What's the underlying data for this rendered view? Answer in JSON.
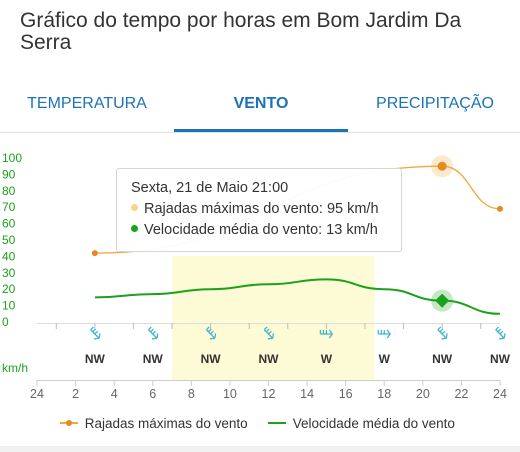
{
  "page": {
    "title": "Gráfico do tempo por horas em Bom Jardim Da Serra"
  },
  "tabs": [
    {
      "label": "TEMPERATURA",
      "active": false
    },
    {
      "label": "VENTO",
      "active": true
    },
    {
      "label": "PRECIPITAÇÃO",
      "active": false
    }
  ],
  "colors": {
    "accent": "#1a73b5",
    "gust": "#f2a93b",
    "gust_dot": "#e58a1f",
    "avg": "#1ba21b",
    "wind_arrow": "#42b7cc",
    "night_band": "#fdfbd6"
  },
  "tooltip": {
    "header": "Sexta, 21 de Maio 21:00",
    "rows": [
      {
        "label": "Rajadas máximas do vento: 95 km/h",
        "color": "#f8d48a"
      },
      {
        "label": "Velocidade média do vento: 13 km/h",
        "color": "#1ba21b"
      }
    ]
  },
  "legend": {
    "gust": "Rajadas máximas do vento",
    "avg": "Velocidade média do vento"
  },
  "chart_data": {
    "type": "line",
    "unit": "km/h",
    "y_ticks": [
      "100",
      "90",
      "80",
      "70",
      "60",
      "50",
      "40",
      "30",
      "20",
      "10",
      "0"
    ],
    "ylim": [
      0,
      100
    ],
    "x_ticks": [
      "24",
      "2",
      "4",
      "6",
      "8",
      "10",
      "12",
      "14",
      "16",
      "18",
      "20",
      "22",
      "24"
    ],
    "xlim": [
      0,
      24
    ],
    "highlight_band": [
      7,
      17.5
    ],
    "series": [
      {
        "name": "Rajadas máximas do vento",
        "x": [
          3,
          21,
          24
        ],
        "y": [
          42,
          95,
          69
        ]
      },
      {
        "name": "Velocidade média do vento",
        "x": [
          3,
          6,
          9,
          12,
          15,
          18,
          21,
          24
        ],
        "y": [
          15,
          17,
          20,
          23,
          26,
          20,
          13,
          5
        ]
      }
    ],
    "selected_point": {
      "x": 21,
      "gust": 95,
      "avg": 13
    },
    "wind_directions": [
      {
        "hour": 3,
        "dir": "NW"
      },
      {
        "hour": 6,
        "dir": "NW"
      },
      {
        "hour": 9,
        "dir": "NW"
      },
      {
        "hour": 12,
        "dir": "NW"
      },
      {
        "hour": 15,
        "dir": "W"
      },
      {
        "hour": 18,
        "dir": "W"
      },
      {
        "hour": 21,
        "dir": "NW"
      },
      {
        "hour": 24,
        "dir": "NW"
      }
    ]
  }
}
